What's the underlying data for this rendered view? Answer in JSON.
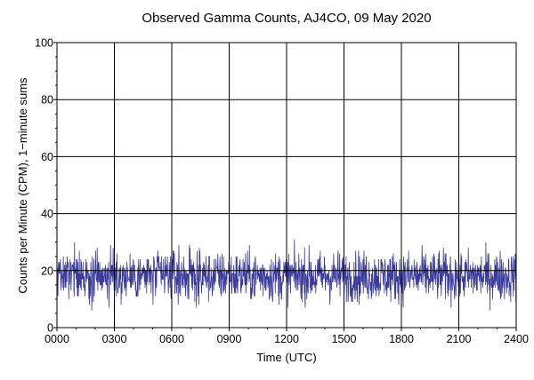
{
  "chart_data": {
    "type": "line",
    "title": "Observed Gamma Counts, AJ4CO, 09 May 2020",
    "xlabel": "Time (UTC)",
    "ylabel": "Counts per Minute (CPM), 1−minute sums",
    "xlim": [
      0,
      1440
    ],
    "ylim": [
      0,
      100
    ],
    "x_tick_labels": [
      "0000",
      "0300",
      "0600",
      "0900",
      "1200",
      "1500",
      "1800",
      "2100",
      "2400"
    ],
    "y_tick_labels": [
      "0",
      "20",
      "40",
      "60",
      "80",
      "100"
    ],
    "grid": true,
    "series": [
      {
        "color": "#3a3a9c",
        "mean": 18,
        "min": 5,
        "max": 31,
        "samples_per_minute": 1,
        "points_shown": 1440
      }
    ]
  }
}
